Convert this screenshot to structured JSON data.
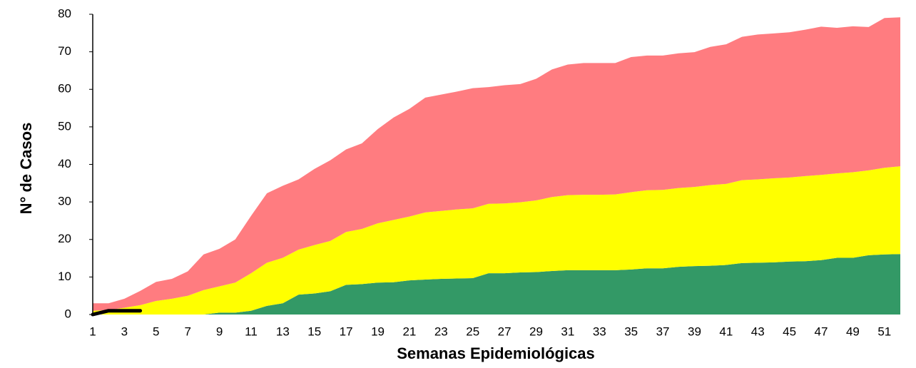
{
  "chart_data": {
    "type": "area",
    "stacked": true,
    "x_label": "Semanas Epidemiológicas",
    "y_label": "N° de Casos",
    "x": [
      1,
      2,
      3,
      4,
      5,
      6,
      7,
      8,
      9,
      10,
      11,
      12,
      13,
      14,
      15,
      16,
      17,
      18,
      19,
      20,
      21,
      22,
      23,
      24,
      25,
      26,
      27,
      28,
      29,
      30,
      31,
      32,
      33,
      34,
      35,
      36,
      37,
      38,
      39,
      40,
      41,
      42,
      43,
      44,
      45,
      46,
      47,
      48,
      49,
      50,
      51,
      52
    ],
    "xlim": [
      1,
      52
    ],
    "xticks": [
      1,
      3,
      5,
      7,
      9,
      11,
      13,
      15,
      17,
      19,
      21,
      23,
      25,
      27,
      29,
      31,
      33,
      35,
      37,
      39,
      41,
      43,
      45,
      47,
      49,
      51
    ],
    "ylim": [
      0,
      80
    ],
    "yticks": [
      0,
      10,
      20,
      30,
      40,
      50,
      60,
      70,
      80
    ],
    "grid": false,
    "series": [
      {
        "color": "#339966",
        "values": [
          0,
          0,
          0,
          0,
          0,
          0,
          0,
          0,
          0.5,
          0.5,
          1,
          2.3,
          3,
          5.3,
          5.6,
          6.2,
          7.9,
          8.1,
          8.5,
          8.6,
          9.1,
          9.3,
          9.5,
          9.6,
          9.7,
          11,
          11,
          11.2,
          11.3,
          11.6,
          11.8,
          11.8,
          11.8,
          11.8,
          12,
          12.3,
          12.3,
          12.7,
          12.9,
          13,
          13.2,
          13.7,
          13.8,
          13.9,
          14.1,
          14.2,
          14.5,
          15.1,
          15.1,
          15.8,
          16,
          16.1
        ]
      },
      {
        "color": "#ffff00",
        "values": [
          1,
          1.2,
          1.8,
          2.5,
          3.6,
          4.2,
          5,
          6.5,
          7,
          8,
          10,
          11.5,
          12.1,
          12,
          12.9,
          13.4,
          14.1,
          14.7,
          15.8,
          16.6,
          17,
          17.9,
          18.1,
          18.4,
          18.6,
          18.5,
          18.6,
          18.7,
          19.1,
          19.7,
          20,
          20.1,
          20.1,
          20.2,
          20.6,
          20.8,
          20.9,
          21,
          21.1,
          21.5,
          21.6,
          22.1,
          22.2,
          22.4,
          22.4,
          22.7,
          22.7,
          22.5,
          22.8,
          22.6,
          23.1,
          23.4
        ]
      },
      {
        "color": "#ff7c80",
        "values": [
          2,
          1.8,
          2.4,
          3.8,
          5.1,
          5.3,
          6.5,
          9.5,
          10,
          11.5,
          15.3,
          18.5,
          19.2,
          18.7,
          20.3,
          21.5,
          22,
          22.8,
          25.1,
          27.3,
          28.7,
          30.6,
          31,
          31.4,
          32,
          31.1,
          31.5,
          31.5,
          32.4,
          34,
          34.8,
          35.1,
          35.1,
          35,
          36,
          35.9,
          35.8,
          35.9,
          35.9,
          36.8,
          37.2,
          38.2,
          38.6,
          38.6,
          38.7,
          39,
          39.5,
          38.8,
          38.9,
          38.2,
          39.9,
          39.7
        ]
      },
      {
        "type": "line",
        "color": "#000000",
        "values": [
          0,
          1,
          1,
          1,
          null,
          null,
          null,
          null,
          null,
          null,
          null,
          null,
          null,
          null,
          null,
          null,
          null,
          null,
          null,
          null,
          null,
          null,
          null,
          null,
          null,
          null,
          null,
          null,
          null,
          null,
          null,
          null,
          null,
          null,
          null,
          null,
          null,
          null,
          null,
          null,
          null,
          null,
          null,
          null,
          null,
          null,
          null,
          null,
          null,
          null,
          null,
          null
        ]
      }
    ]
  }
}
